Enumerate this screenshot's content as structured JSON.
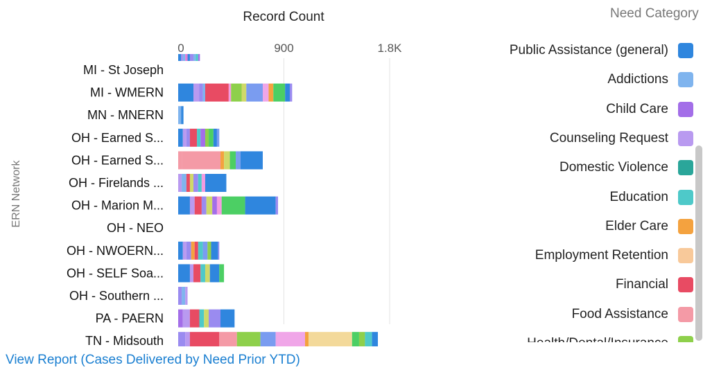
{
  "chart_data": {
    "type": "bar",
    "orientation": "horizontal",
    "stacked": true,
    "title": "",
    "xlabel": "Record Count",
    "ylabel": "ERN Network",
    "xlim": [
      0,
      1800
    ],
    "x_ticks": [
      {
        "value": 0,
        "label": "0"
      },
      {
        "value": 900,
        "label": "900"
      },
      {
        "value": 1800,
        "label": "1.8K"
      }
    ],
    "categories": [
      "MI - St Joseph",
      "MI - WMERN",
      "MN - MNERN",
      "OH - Earned S...",
      "OH - Earned S...",
      "OH - Firelands ...",
      "OH - Marion M...",
      "OH - NEO",
      "OH - NWOERN...",
      "OH - SELF Soa...",
      "OH - Southern ...",
      "PA - PAERN",
      "TN - Midsouth"
    ],
    "segments": [
      [
        {
          "value": 25,
          "color": "#2f86de"
        },
        {
          "value": 15,
          "color": "#9a8bf0"
        },
        {
          "value": 20,
          "color": "#7fb4ee"
        },
        {
          "value": 20,
          "color": "#e07bd6"
        },
        {
          "value": 20,
          "color": "#2f86de"
        },
        {
          "value": 30,
          "color": "#9a8bf0"
        },
        {
          "value": 20,
          "color": "#7fb4ee"
        },
        {
          "value": 20,
          "color": "#4ec9c9"
        },
        {
          "value": 15,
          "color": "#a36ee8"
        }
      ],
      [
        {
          "value": 130,
          "color": "#2f86de"
        },
        {
          "value": 50,
          "color": "#b99af0"
        },
        {
          "value": 30,
          "color": "#9a8bf0"
        },
        {
          "value": 20,
          "color": "#7fb4ee"
        },
        {
          "value": 200,
          "color": "#e84b63"
        },
        {
          "value": 20,
          "color": "#f39be0"
        },
        {
          "value": 90,
          "color": "#8ed04b"
        },
        {
          "value": 40,
          "color": "#cfd96a"
        },
        {
          "value": 140,
          "color": "#7a9cf0"
        },
        {
          "value": 50,
          "color": "#f0a6e8"
        },
        {
          "value": 40,
          "color": "#f4a23f"
        },
        {
          "value": 100,
          "color": "#4ccf64"
        },
        {
          "value": 40,
          "color": "#2f86de"
        },
        {
          "value": 20,
          "color": "#9a8bf0"
        }
      ],
      [
        {
          "value": 25,
          "color": "#7fb4ee"
        },
        {
          "value": 20,
          "color": "#2f86de"
        }
      ],
      [
        {
          "value": 40,
          "color": "#2f86de"
        },
        {
          "value": 30,
          "color": "#b99af0"
        },
        {
          "value": 30,
          "color": "#9a8bf0"
        },
        {
          "value": 60,
          "color": "#e84b63"
        },
        {
          "value": 30,
          "color": "#4ec9c9"
        },
        {
          "value": 40,
          "color": "#a36ee8"
        },
        {
          "value": 30,
          "color": "#8ed04b"
        },
        {
          "value": 40,
          "color": "#4ccf64"
        },
        {
          "value": 30,
          "color": "#2f86de"
        },
        {
          "value": 20,
          "color": "#7a9cf0"
        }
      ],
      [
        {
          "value": 30,
          "color": "#f49aa6"
        },
        {
          "value": 330,
          "color": "#f49aa6"
        },
        {
          "value": 30,
          "color": "#f4a23f"
        },
        {
          "value": 50,
          "color": "#cfd96a"
        },
        {
          "value": 50,
          "color": "#4ccf64"
        },
        {
          "value": 40,
          "color": "#7a9cf0"
        },
        {
          "value": 190,
          "color": "#2f86de"
        }
      ],
      [
        {
          "value": 30,
          "color": "#b99af0"
        },
        {
          "value": 40,
          "color": "#7fb4ee"
        },
        {
          "value": 30,
          "color": "#e84b63"
        },
        {
          "value": 30,
          "color": "#cfd96a"
        },
        {
          "value": 40,
          "color": "#9a8bf0"
        },
        {
          "value": 30,
          "color": "#4ec9c9"
        },
        {
          "value": 30,
          "color": "#f39be0"
        },
        {
          "value": 180,
          "color": "#2f86de"
        }
      ],
      [
        {
          "value": 100,
          "color": "#2f86de"
        },
        {
          "value": 40,
          "color": "#b99af0"
        },
        {
          "value": 60,
          "color": "#e84b63"
        },
        {
          "value": 40,
          "color": "#9a8bf0"
        },
        {
          "value": 50,
          "color": "#cfd96a"
        },
        {
          "value": 40,
          "color": "#a36ee8"
        },
        {
          "value": 40,
          "color": "#f39be0"
        },
        {
          "value": 200,
          "color": "#4ccf64"
        },
        {
          "value": 260,
          "color": "#2f86de"
        },
        {
          "value": 20,
          "color": "#9a8bf0"
        }
      ],
      [],
      [
        {
          "value": 40,
          "color": "#2f86de"
        },
        {
          "value": 30,
          "color": "#b99af0"
        },
        {
          "value": 40,
          "color": "#9a8bf0"
        },
        {
          "value": 30,
          "color": "#f4a23f"
        },
        {
          "value": 30,
          "color": "#e84b63"
        },
        {
          "value": 40,
          "color": "#4ec9c9"
        },
        {
          "value": 40,
          "color": "#7a9cf0"
        },
        {
          "value": 30,
          "color": "#8ed04b"
        },
        {
          "value": 60,
          "color": "#2f86de"
        },
        {
          "value": 10,
          "color": "#9a8bf0"
        }
      ],
      [
        {
          "value": 100,
          "color": "#2f86de"
        },
        {
          "value": 30,
          "color": "#b99af0"
        },
        {
          "value": 60,
          "color": "#e84b63"
        },
        {
          "value": 40,
          "color": "#4ec9c9"
        },
        {
          "value": 40,
          "color": "#cfd96a"
        },
        {
          "value": 80,
          "color": "#2f86de"
        },
        {
          "value": 40,
          "color": "#4ccf64"
        }
      ],
      [
        {
          "value": 30,
          "color": "#9a8bf0"
        },
        {
          "value": 30,
          "color": "#7fb4ee"
        },
        {
          "value": 20,
          "color": "#b99af0"
        }
      ],
      [
        {
          "value": 40,
          "color": "#a36ee8"
        },
        {
          "value": 60,
          "color": "#b99af0"
        },
        {
          "value": 80,
          "color": "#e84b63"
        },
        {
          "value": 40,
          "color": "#4ec9c9"
        },
        {
          "value": 40,
          "color": "#cfd96a"
        },
        {
          "value": 100,
          "color": "#9a8bf0"
        },
        {
          "value": 120,
          "color": "#2f86de"
        }
      ],
      [
        {
          "value": 60,
          "color": "#9a8bf0"
        },
        {
          "value": 40,
          "color": "#b99af0"
        },
        {
          "value": 250,
          "color": "#e84b63"
        },
        {
          "value": 150,
          "color": "#f49aa6"
        },
        {
          "value": 200,
          "color": "#8ed04b"
        },
        {
          "value": 130,
          "color": "#7a9cf0"
        },
        {
          "value": 250,
          "color": "#f0a6e8"
        },
        {
          "value": 30,
          "color": "#f4a23f"
        },
        {
          "value": 370,
          "color": "#f3d99a"
        },
        {
          "value": 60,
          "color": "#4ccf64"
        },
        {
          "value": 50,
          "color": "#8ed04b"
        },
        {
          "value": 60,
          "color": "#4ec9c9"
        },
        {
          "value": 50,
          "color": "#2f86de"
        }
      ]
    ],
    "legend": {
      "title": "Need Category",
      "placement": "right",
      "items": [
        {
          "label": "Public Assistance (general)",
          "color": "#2f86de"
        },
        {
          "label": "Addictions",
          "color": "#7fb4ee"
        },
        {
          "label": "Child Care",
          "color": "#a36ee8"
        },
        {
          "label": "Counseling Request",
          "color": "#b99af0"
        },
        {
          "label": "Domestic Violence",
          "color": "#2aa69a"
        },
        {
          "label": "Education",
          "color": "#4ec9c9"
        },
        {
          "label": "Elder Care",
          "color": "#f4a23f"
        },
        {
          "label": "Employment Retention",
          "color": "#f8c99a"
        },
        {
          "label": "Financial",
          "color": "#e84b63"
        },
        {
          "label": "Food Assistance",
          "color": "#f49aa6"
        },
        {
          "label": "Health/Dental/Insurance",
          "color": "#8ed04b"
        }
      ]
    },
    "grid": true
  },
  "links": {
    "view_report": "View Report (Cases Delivered by Need Prior YTD)"
  }
}
